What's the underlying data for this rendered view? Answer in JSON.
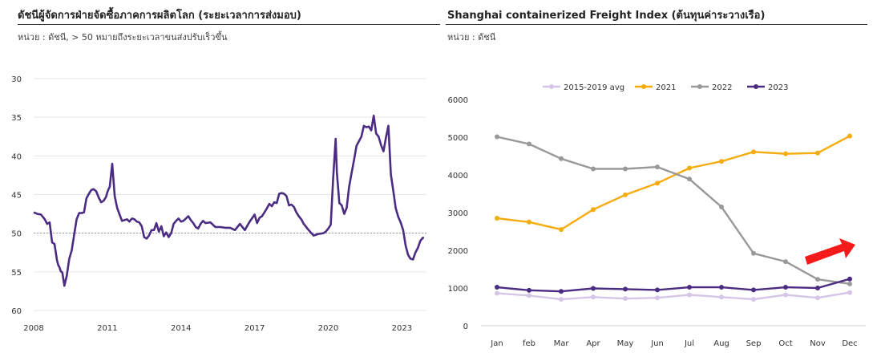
{
  "left_chart": {
    "title": "ดัชนีผู้จัดการฝ่ายจัดซื้อภาคการผลิตโลก (ระยะเวลาการส่งมอบ)",
    "subtitle": "หน่วย : ดัชนี, > 50 หมายถึงระยะเวลาขนส่งปรับเร็วขึ้น"
  },
  "right_chart": {
    "title": "Shanghai containerized Freight Index (ต้นทุนค่าระวางเรือ)",
    "subtitle": "หน่วย : ดัชนี"
  },
  "chart_data": [
    {
      "type": "line",
      "title": "ดัชนีผู้จัดการฝ่ายจัดซื้อภาคการผลิตโลก (ระยะเวลาการส่งมอบ)",
      "y_inverted": true,
      "ylim": [
        60,
        30
      ],
      "yticks": [
        30,
        35,
        40,
        45,
        50,
        55,
        60
      ],
      "xlim": [
        2008,
        2024.0
      ],
      "xticks": [
        "2008",
        "2011",
        "2014",
        "2017",
        "2020",
        "2023"
      ],
      "xtick_values": [
        2008,
        2011,
        2014,
        2017,
        2020,
        2023
      ],
      "reference_line": 50,
      "series": [
        {
          "color": "#4b2c83",
          "x": [
            2008.0,
            2008.15,
            2008.3,
            2008.45,
            2008.55,
            2008.65,
            2008.75,
            2008.85,
            2008.95,
            2009.0,
            2009.05,
            2009.1,
            2009.17,
            2009.25,
            2009.35,
            2009.45,
            2009.55,
            2009.65,
            2009.75,
            2009.85,
            2009.95,
            2010.05,
            2010.15,
            2010.25,
            2010.35,
            2010.45,
            2010.55,
            2010.65,
            2010.75,
            2010.85,
            2010.95,
            2011.0,
            2011.05,
            2011.1,
            2011.2,
            2011.3,
            2011.4,
            2011.5,
            2011.6,
            2011.7,
            2011.8,
            2011.9,
            2012.0,
            2012.1,
            2012.2,
            2012.3,
            2012.4,
            2012.5,
            2012.6,
            2012.7,
            2012.8,
            2012.9,
            2013.0,
            2013.1,
            2013.2,
            2013.3,
            2013.4,
            2013.5,
            2013.6,
            2013.7,
            2013.8,
            2013.9,
            2014.0,
            2014.1,
            2014.2,
            2014.3,
            2014.4,
            2014.5,
            2014.6,
            2014.7,
            2014.8,
            2014.9,
            2015.0,
            2015.2,
            2015.4,
            2015.6,
            2015.8,
            2016.0,
            2016.2,
            2016.4,
            2016.6,
            2016.8,
            2017.0,
            2017.1,
            2017.2,
            2017.3,
            2017.4,
            2017.5,
            2017.6,
            2017.7,
            2017.8,
            2017.9,
            2018.0,
            2018.1,
            2018.2,
            2018.3,
            2018.4,
            2018.5,
            2018.6,
            2018.7,
            2018.8,
            2018.9,
            2019.0,
            2019.2,
            2019.4,
            2019.6,
            2019.8,
            2019.9,
            2020.0,
            2020.1,
            2020.2,
            2020.3,
            2020.35,
            2020.45,
            2020.55,
            2020.65,
            2020.75,
            2020.85,
            2020.95,
            2021.05,
            2021.15,
            2021.25,
            2021.35,
            2021.45,
            2021.55,
            2021.65,
            2021.75,
            2021.85,
            2021.95,
            2022.05,
            2022.15,
            2022.25,
            2022.35,
            2022.45,
            2022.55,
            2022.65,
            2022.75,
            2022.85,
            2022.95,
            2023.05,
            2023.15,
            2023.25,
            2023.35,
            2023.45,
            2023.55,
            2023.65,
            2023.75,
            2023.85,
            2023.9
          ],
          "values": [
            47.3,
            47.5,
            47.6,
            48.2,
            48.8,
            48.6,
            51.2,
            51.4,
            53.5,
            54.1,
            54.4,
            54.9,
            55.1,
            56.8,
            55.5,
            53.3,
            52.2,
            50.2,
            48.2,
            47.4,
            47.4,
            47.3,
            45.5,
            44.9,
            44.4,
            44.3,
            44.6,
            45.4,
            46.0,
            45.8,
            45.3,
            44.7,
            44.3,
            44.0,
            41.0,
            45.2,
            46.7,
            47.6,
            48.4,
            48.3,
            48.2,
            48.5,
            48.1,
            48.2,
            48.5,
            48.6,
            49.1,
            50.5,
            50.7,
            50.3,
            49.6,
            49.6,
            48.7,
            49.8,
            49.1,
            50.4,
            49.9,
            50.5,
            50.0,
            48.8,
            48.4,
            48.1,
            48.5,
            48.4,
            48.1,
            47.8,
            48.3,
            48.7,
            49.2,
            49.4,
            48.8,
            48.4,
            48.7,
            48.6,
            49.2,
            49.2,
            49.3,
            49.3,
            49.6,
            48.8,
            49.6,
            48.5,
            47.6,
            48.7,
            48.0,
            47.8,
            47.3,
            46.8,
            46.2,
            46.5,
            46.0,
            46.1,
            44.9,
            44.8,
            44.9,
            45.2,
            46.4,
            46.3,
            46.6,
            47.3,
            47.8,
            48.2,
            48.8,
            49.6,
            50.3,
            50.1,
            50.0,
            49.8,
            49.4,
            48.9,
            42.9,
            37.8,
            42.1,
            46.1,
            46.4,
            47.5,
            46.7,
            44.0,
            42.2,
            40.5,
            38.7,
            38.1,
            37.5,
            36.1,
            36.3,
            36.2,
            36.7,
            34.8,
            37.1,
            37.5,
            38.6,
            39.4,
            37.6,
            36.1,
            42.4,
            44.6,
            46.8,
            47.9,
            48.6,
            49.6,
            51.6,
            52.8,
            53.3,
            53.4,
            52.5,
            51.9,
            51.0,
            50.6,
            50.6
          ]
        }
      ]
    },
    {
      "type": "line",
      "title": "Shanghai containerized Freight Index (ต้นทุนค่าระวางเรือ)",
      "categories": [
        "Jan",
        "feb",
        "Mar",
        "Apr",
        "May",
        "Jun",
        "Jul",
        "Aug",
        "Sep",
        "Oct",
        "Nov",
        "Dec"
      ],
      "ylim": [
        0,
        6000
      ],
      "yticks": [
        0,
        1000,
        2000,
        3000,
        4000,
        5000,
        6000
      ],
      "legend_position": "top",
      "series": [
        {
          "name": "2015-2019 avg",
          "color": "#d5c6e8",
          "values": [
            860,
            800,
            700,
            760,
            720,
            740,
            820,
            760,
            700,
            820,
            740,
            880
          ]
        },
        {
          "name": "2021",
          "color": "#f5ac0f",
          "values": [
            2850,
            2750,
            2550,
            3080,
            3470,
            3780,
            4180,
            4360,
            4610,
            4560,
            4580,
            5030
          ]
        },
        {
          "name": "2022",
          "color": "#999999",
          "values": [
            5010,
            4820,
            4430,
            4160,
            4160,
            4210,
            3890,
            3150,
            1920,
            1700,
            1230,
            1110
          ]
        },
        {
          "name": "2023",
          "color": "#4b2c83",
          "values": [
            1020,
            940,
            910,
            990,
            970,
            950,
            1020,
            1020,
            950,
            1020,
            1000,
            1240
          ]
        }
      ],
      "annotation": "red upward arrow near Nov–Dec"
    }
  ]
}
